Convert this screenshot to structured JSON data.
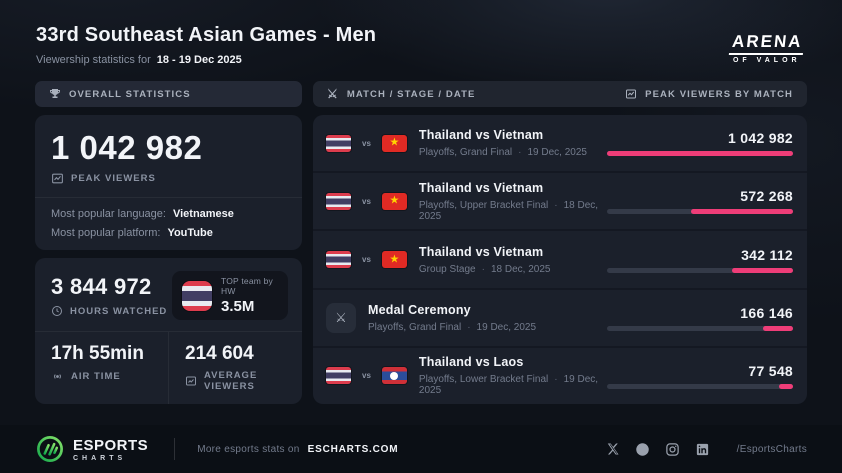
{
  "header": {
    "title": "33rd Southeast Asian Games - Men",
    "subtitle_prefix": "Viewership statistics for",
    "date_range": "18 - 19 Dec 2025",
    "game_title_line1": "ARENA",
    "game_title_line2": "OF VALOR"
  },
  "tabs": {
    "overall": "OVERALL STATISTICS",
    "match_header": "MATCH / STAGE / DATE",
    "peak_header": "PEAK VIEWERS BY MATCH"
  },
  "overall": {
    "peak_viewers_value": "1 042 982",
    "peak_viewers_label": "PEAK VIEWERS",
    "language_label": "Most popular language:",
    "language_value": "Vietnamese",
    "platform_label": "Most popular platform:",
    "platform_value": "YouTube",
    "hours_watched_value": "3 844 972",
    "hours_watched_label": "HOURS WATCHED",
    "top_team_label": "TOP team by HW",
    "top_team_value": "3.5M",
    "top_team_flag": "thailand",
    "air_time_value": "17h 55min",
    "air_time_label": "AIR TIME",
    "avg_viewers_value": "214 604",
    "avg_viewers_label": "AVERAGE VIEWERS"
  },
  "matches": [
    {
      "type": "match",
      "flags": [
        "thailand",
        "vietnam"
      ],
      "title": "Thailand vs Vietnam",
      "stage": "Playoffs, Grand Final",
      "date": "19 Dec, 2025",
      "value": "1 042 982",
      "pct": 100
    },
    {
      "type": "match",
      "flags": [
        "thailand",
        "vietnam"
      ],
      "title": "Thailand vs Vietnam",
      "stage": "Playoffs, Upper Bracket Final",
      "date": "18 Dec, 2025",
      "value": "572 268",
      "pct": 54.9
    },
    {
      "type": "match",
      "flags": [
        "thailand",
        "vietnam"
      ],
      "title": "Thailand vs Vietnam",
      "stage": "Group Stage",
      "date": "18 Dec, 2025",
      "value": "342 112",
      "pct": 32.8
    },
    {
      "type": "event",
      "icon": "crossed-swords",
      "title": "Medal Ceremony",
      "stage": "Playoffs, Grand Final",
      "date": "19 Dec, 2025",
      "value": "166 146",
      "pct": 15.9
    },
    {
      "type": "match",
      "flags": [
        "thailand",
        "laos"
      ],
      "title": "Thailand vs Laos",
      "stage": "Playoffs, Lower Bracket Final",
      "date": "19 Dec, 2025",
      "value": "77 548",
      "pct": 7.4
    }
  ],
  "footer": {
    "logo_line1": "ESPORTS",
    "logo_line2": "CHARTS",
    "more_prefix": "More esports stats on",
    "site": "ESCHARTS.COM",
    "handle": "/EsportsCharts"
  },
  "ui": {
    "vs": "vs",
    "dot": "·",
    "swords_glyph": "⚔"
  },
  "colors": {
    "accent_pink": "#ee3d78",
    "bar_track": "#343a48",
    "card_bg": "#1b202b",
    "page_bg": "#0e1219",
    "brand_green": "#2fd05e"
  }
}
